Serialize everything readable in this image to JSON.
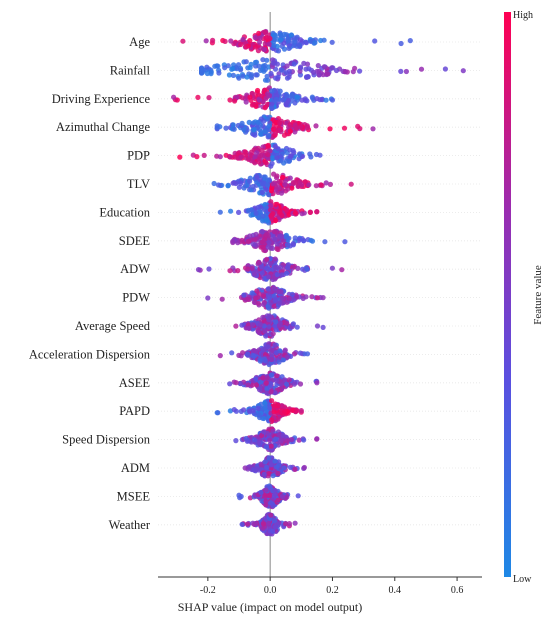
{
  "chart_data": {
    "type": "beeswarm",
    "title": "",
    "xlabel": "SHAP value (impact on model output)",
    "ylabel": "",
    "xlim": [
      -0.36,
      0.68
    ],
    "xticks": [
      -0.2,
      0.0,
      0.2,
      0.4,
      0.6
    ],
    "xtick_labels": [
      "-0.2",
      "0.0",
      "0.2",
      "0.4",
      "0.6"
    ],
    "colorbar": {
      "label": "Feature value",
      "high": "High",
      "low": "Low",
      "color_high": "#ff0052",
      "color_low": "#1e88e5"
    },
    "features": [
      {
        "name": "Age",
        "min": -0.28,
        "max": 0.45,
        "spread": 0.2,
        "skew": "high_left"
      },
      {
        "name": "Rainfall",
        "min": -0.22,
        "max": 0.62,
        "spread": 0.35,
        "skew": "low_left_high_right"
      },
      {
        "name": "Driving Experience",
        "min": -0.31,
        "max": 0.2,
        "spread": 0.16,
        "skew": "high_left"
      },
      {
        "name": "Azimuthal Change",
        "min": -0.17,
        "max": 0.33,
        "spread": 0.17,
        "skew": "high_right"
      },
      {
        "name": "PDP",
        "min": -0.29,
        "max": 0.16,
        "spread": 0.16,
        "skew": "high_left"
      },
      {
        "name": "TLV",
        "min": -0.18,
        "max": 0.26,
        "spread": 0.17,
        "skew": "high_right"
      },
      {
        "name": "Education",
        "min": -0.16,
        "max": 0.15,
        "spread": 0.1,
        "skew": "high_right"
      },
      {
        "name": "SDEE",
        "min": -0.12,
        "max": 0.24,
        "spread": 0.14,
        "skew": "low_right"
      },
      {
        "name": "ADW",
        "min": -0.23,
        "max": 0.23,
        "spread": 0.12,
        "skew": "mixed"
      },
      {
        "name": "PDW",
        "min": -0.2,
        "max": 0.17,
        "spread": 0.12,
        "skew": "mixed"
      },
      {
        "name": "Average Speed",
        "min": -0.11,
        "max": 0.17,
        "spread": 0.1,
        "skew": "mixed"
      },
      {
        "name": "Acceleration Dispersion",
        "min": -0.16,
        "max": 0.12,
        "spread": 0.1,
        "skew": "mixed"
      },
      {
        "name": "ASEE",
        "min": -0.13,
        "max": 0.15,
        "spread": 0.1,
        "skew": "mixed"
      },
      {
        "name": "PAPD",
        "min": -0.17,
        "max": 0.1,
        "spread": 0.09,
        "skew": "high_right"
      },
      {
        "name": "Speed Dispersion",
        "min": -0.11,
        "max": 0.15,
        "spread": 0.09,
        "skew": "mixed"
      },
      {
        "name": "ADM",
        "min": -0.08,
        "max": 0.11,
        "spread": 0.07,
        "skew": "mixed"
      },
      {
        "name": "MSEE",
        "min": -0.1,
        "max": 0.09,
        "spread": 0.06,
        "skew": "mixed"
      },
      {
        "name": "Weather",
        "min": -0.09,
        "max": 0.08,
        "spread": 0.05,
        "skew": "mixed"
      }
    ]
  }
}
